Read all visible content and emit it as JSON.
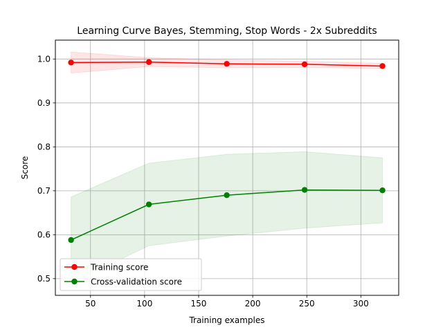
{
  "chart_data": {
    "type": "line",
    "title": "Learning Curve  Bayes, Stemming, Stop Words - 2x Subreddits",
    "xlabel": "Training examples",
    "ylabel": "Score",
    "xlim": [
      17.5,
      335
    ],
    "ylim": [
      0.462,
      1.043
    ],
    "xticks": [
      50,
      100,
      150,
      200,
      250,
      300
    ],
    "yticks": [
      0.5,
      0.6,
      0.7,
      0.8,
      0.9,
      1.0
    ],
    "xtick_labels": [
      "50",
      "100",
      "150",
      "200",
      "250",
      "300"
    ],
    "ytick_labels": [
      "0.5",
      "0.6",
      "0.7",
      "0.8",
      "0.9",
      "1.0"
    ],
    "grid": true,
    "legend_position": "lower-left",
    "x": [
      32,
      104,
      176,
      248,
      320
    ],
    "series": [
      {
        "name": "Training score",
        "color": "#ff0000",
        "values": [
          0.992,
          0.993,
          0.989,
          0.988,
          0.984
        ],
        "band_lower": [
          0.968,
          0.983,
          0.98,
          0.981,
          0.978
        ],
        "band_upper": [
          1.016,
          1.003,
          0.998,
          0.995,
          0.99
        ],
        "band_color": "#ff0000"
      },
      {
        "name": "Cross-validation score",
        "color": "#008000",
        "values": [
          0.588,
          0.669,
          0.69,
          0.702,
          0.701
        ],
        "band_lower": [
          0.49,
          0.575,
          0.597,
          0.615,
          0.627
        ],
        "band_upper": [
          0.686,
          0.763,
          0.783,
          0.789,
          0.775
        ],
        "band_color": "#008000"
      }
    ]
  }
}
